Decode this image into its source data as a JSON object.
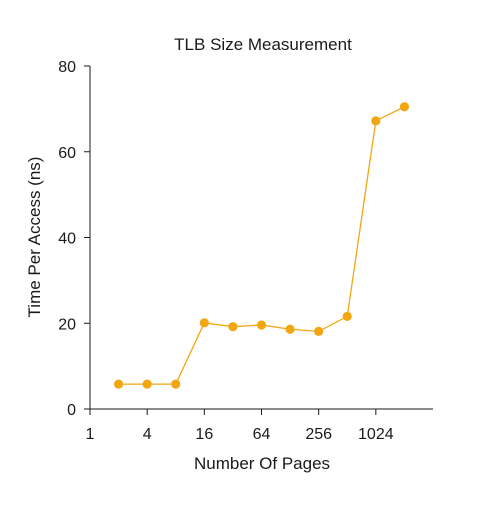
{
  "chart_data": {
    "type": "line",
    "title": "TLB Size Measurement",
    "xlabel": "Number Of Pages",
    "ylabel": "Time Per Access (ns)",
    "x_scale": "log2",
    "xlim": [
      1,
      4096
    ],
    "ylim": [
      0,
      80
    ],
    "x_ticks": [
      {
        "value": 1,
        "label": "1"
      },
      {
        "value": 4,
        "label": "4"
      },
      {
        "value": 16,
        "label": "16"
      },
      {
        "value": 64,
        "label": "64"
      },
      {
        "value": 256,
        "label": "256"
      },
      {
        "value": 1024,
        "label": "1024"
      }
    ],
    "y_ticks": [
      {
        "value": 0,
        "label": "0"
      },
      {
        "value": 20,
        "label": "20"
      },
      {
        "value": 40,
        "label": "40"
      },
      {
        "value": 60,
        "label": "60"
      },
      {
        "value": 80,
        "label": "80"
      }
    ],
    "grid": false,
    "series": [
      {
        "color": "#f2a612",
        "points": [
          {
            "x": 2,
            "y": 5.8
          },
          {
            "x": 4,
            "y": 5.8
          },
          {
            "x": 8,
            "y": 5.8
          },
          {
            "x": 16,
            "y": 20.1
          },
          {
            "x": 32,
            "y": 19.2
          },
          {
            "x": 64,
            "y": 19.6
          },
          {
            "x": 128,
            "y": 18.6
          },
          {
            "x": 256,
            "y": 18.1
          },
          {
            "x": 512,
            "y": 21.6
          },
          {
            "x": 1024,
            "y": 67.2
          },
          {
            "x": 2048,
            "y": 70.5
          }
        ]
      }
    ]
  }
}
